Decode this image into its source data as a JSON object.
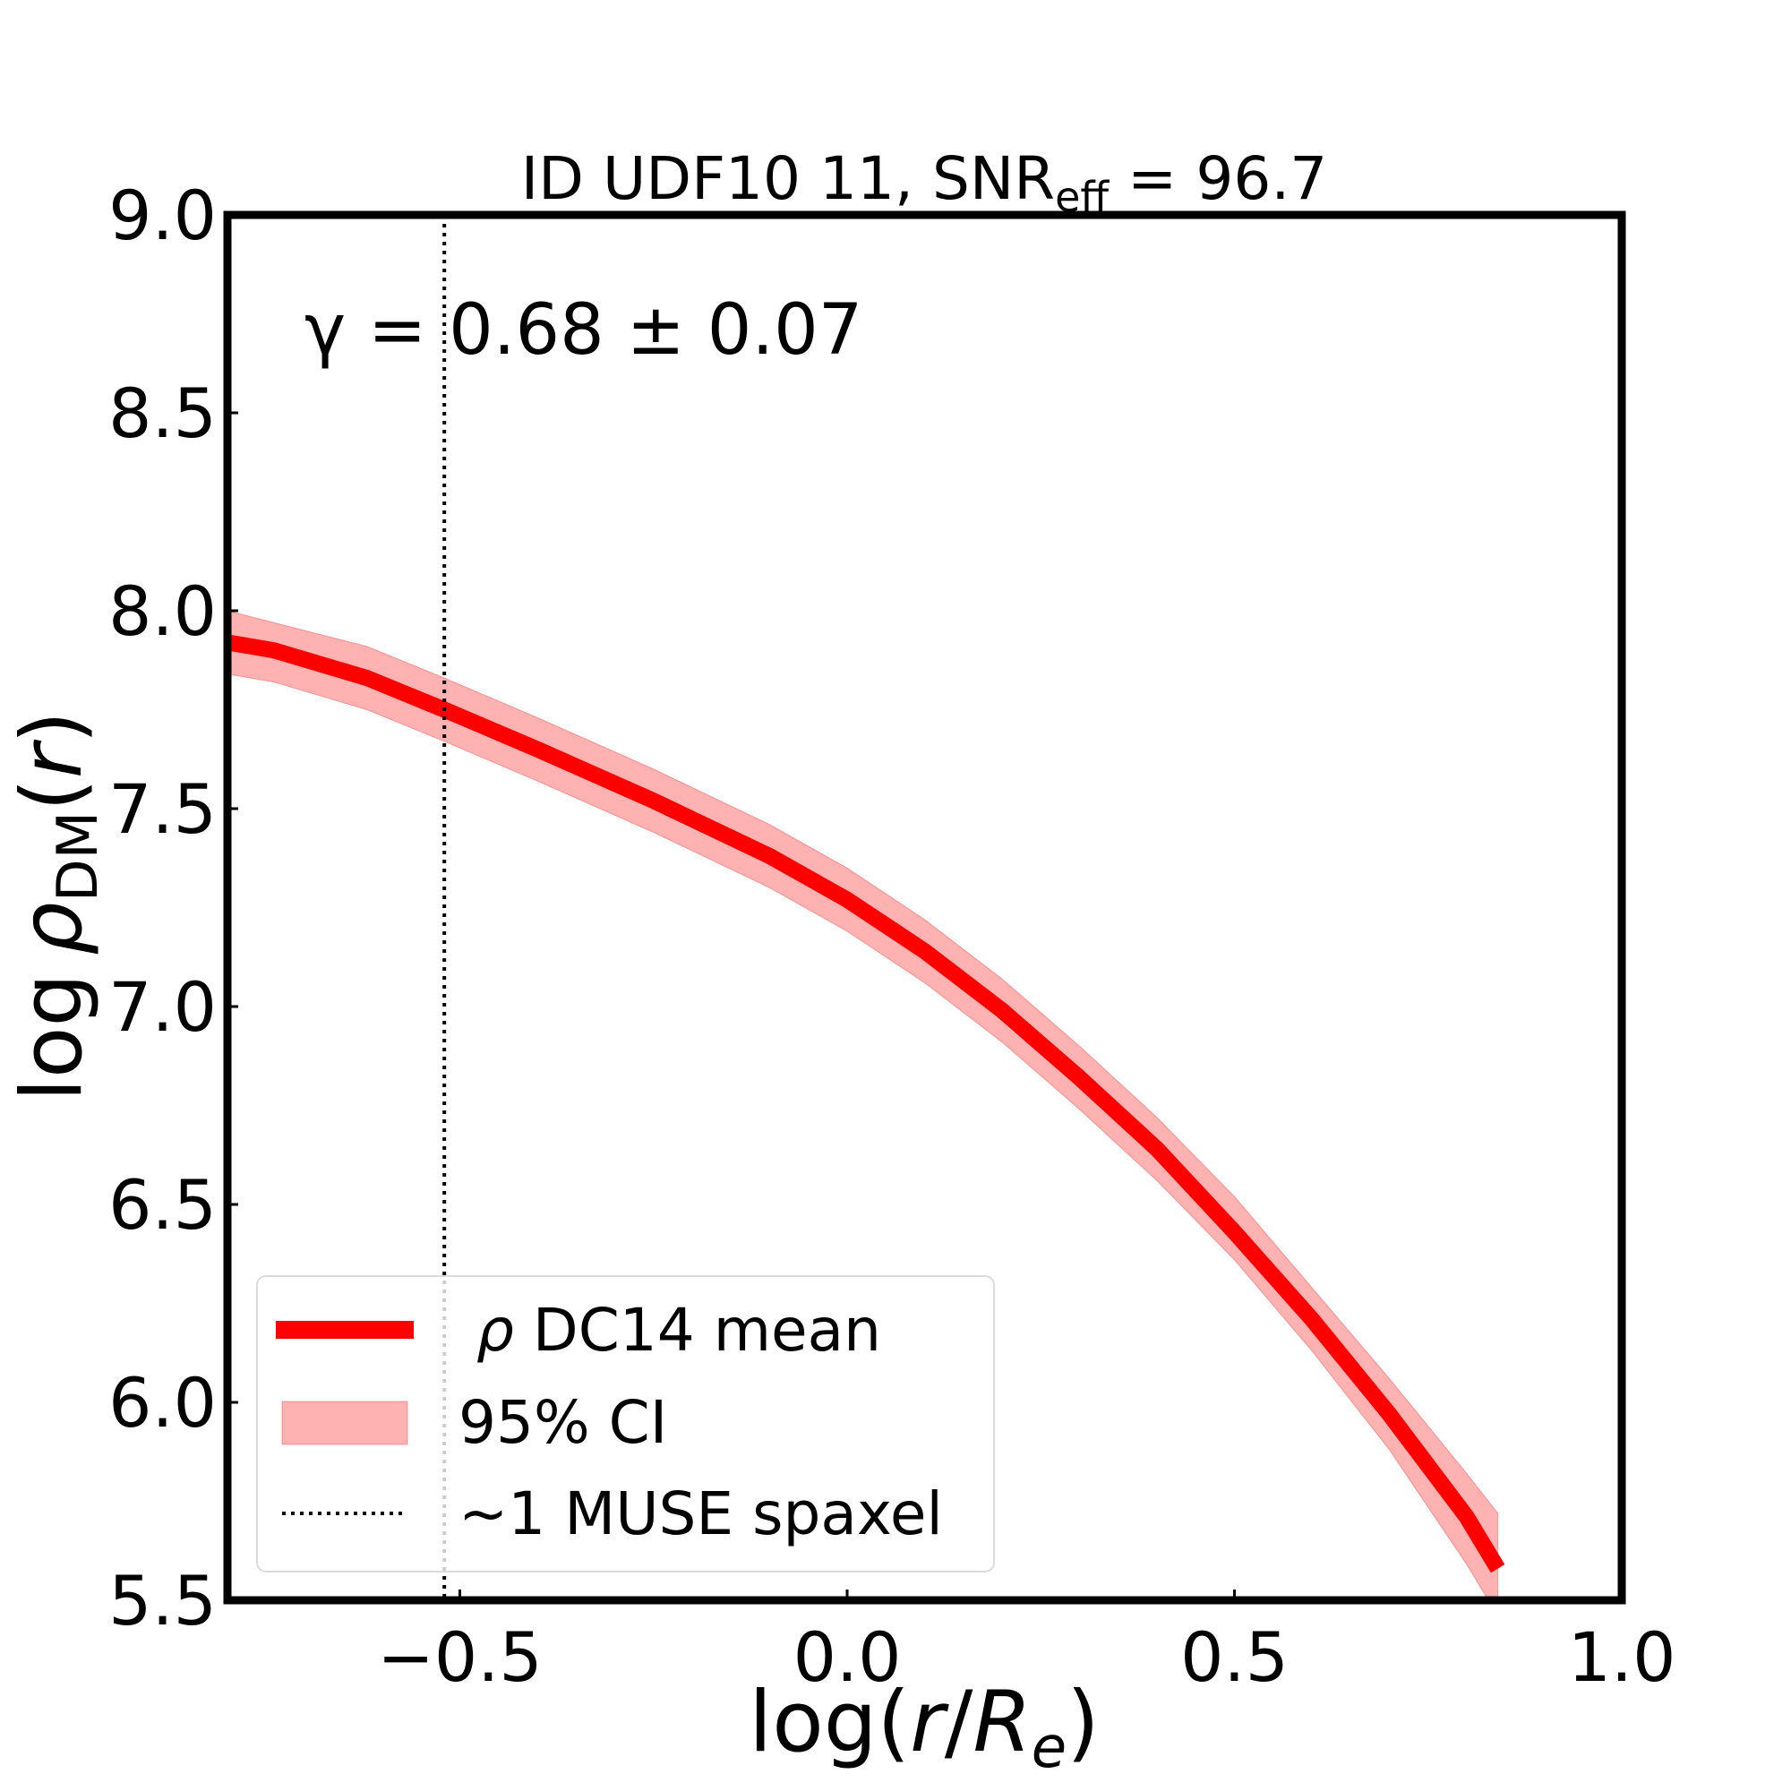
{
  "chart_data": {
    "type": "line",
    "title": {
      "prefix": "ID UDF10 11, SNR",
      "subscript": "eff",
      "suffix": " = 96.7"
    },
    "xlabel": {
      "prefix": "log(",
      "r": "r",
      "slash": "/",
      "R": "R",
      "sub": "e",
      "suffix": ")"
    },
    "ylabel": {
      "log": "log",
      "rho": "ρ",
      "sub": "DM",
      "open": "(",
      "r": "r",
      "close": ")"
    },
    "xlim": [
      -0.8,
      1.0
    ],
    "ylim": [
      5.5,
      9.0
    ],
    "xticks": [
      -0.5,
      0.0,
      0.5,
      1.0
    ],
    "xtick_labels": [
      "−0.5",
      "0.0",
      "0.5",
      "1.0"
    ],
    "yticks": [
      5.5,
      6.0,
      6.5,
      7.0,
      7.5,
      8.0,
      8.5,
      9.0
    ],
    "ytick_labels": [
      "5.5",
      "6.0",
      "6.5",
      "7.0",
      "7.5",
      "8.0",
      "8.5",
      "9.0"
    ],
    "annotation": "γ = 0.68 ± 0.07",
    "vline": {
      "x": -0.52,
      "style": "dotted",
      "label": "~1 MUSE spaxel"
    },
    "series": [
      {
        "name": "ρ DC14 mean",
        "color": "#ff0000",
        "x": [
          -0.8,
          -0.74,
          -0.62,
          -0.52,
          -0.4,
          -0.25,
          -0.1,
          0.0,
          0.1,
          0.2,
          0.3,
          0.4,
          0.5,
          0.6,
          0.7,
          0.8,
          0.84
        ],
        "y": [
          7.92,
          7.9,
          7.83,
          7.75,
          7.65,
          7.52,
          7.38,
          7.27,
          7.14,
          6.99,
          6.82,
          6.64,
          6.43,
          6.21,
          5.97,
          5.71,
          5.58
        ]
      }
    ],
    "band": {
      "name": "95% CI",
      "color": "#ff0000",
      "opacity": 0.3,
      "x": [
        -0.8,
        -0.74,
        -0.62,
        -0.52,
        -0.4,
        -0.25,
        -0.1,
        0.0,
        0.1,
        0.2,
        0.3,
        0.4,
        0.5,
        0.6,
        0.7,
        0.8,
        0.84
      ],
      "lower": [
        7.84,
        7.82,
        7.75,
        7.67,
        7.57,
        7.44,
        7.3,
        7.19,
        7.06,
        6.91,
        6.74,
        6.56,
        6.36,
        6.13,
        5.88,
        5.59,
        5.46
      ],
      "upper": [
        8.0,
        7.97,
        7.91,
        7.83,
        7.73,
        7.6,
        7.46,
        7.35,
        7.22,
        7.07,
        6.9,
        6.72,
        6.52,
        6.29,
        6.06,
        5.82,
        5.72
      ]
    },
    "legend": {
      "position": "lower-left",
      "entries": [
        {
          "kind": "line",
          "rho": "ρ",
          "label": " DC14 mean"
        },
        {
          "kind": "band",
          "label": "95% CI"
        },
        {
          "kind": "dotted",
          "label": "~1 MUSE spaxel"
        }
      ]
    }
  }
}
